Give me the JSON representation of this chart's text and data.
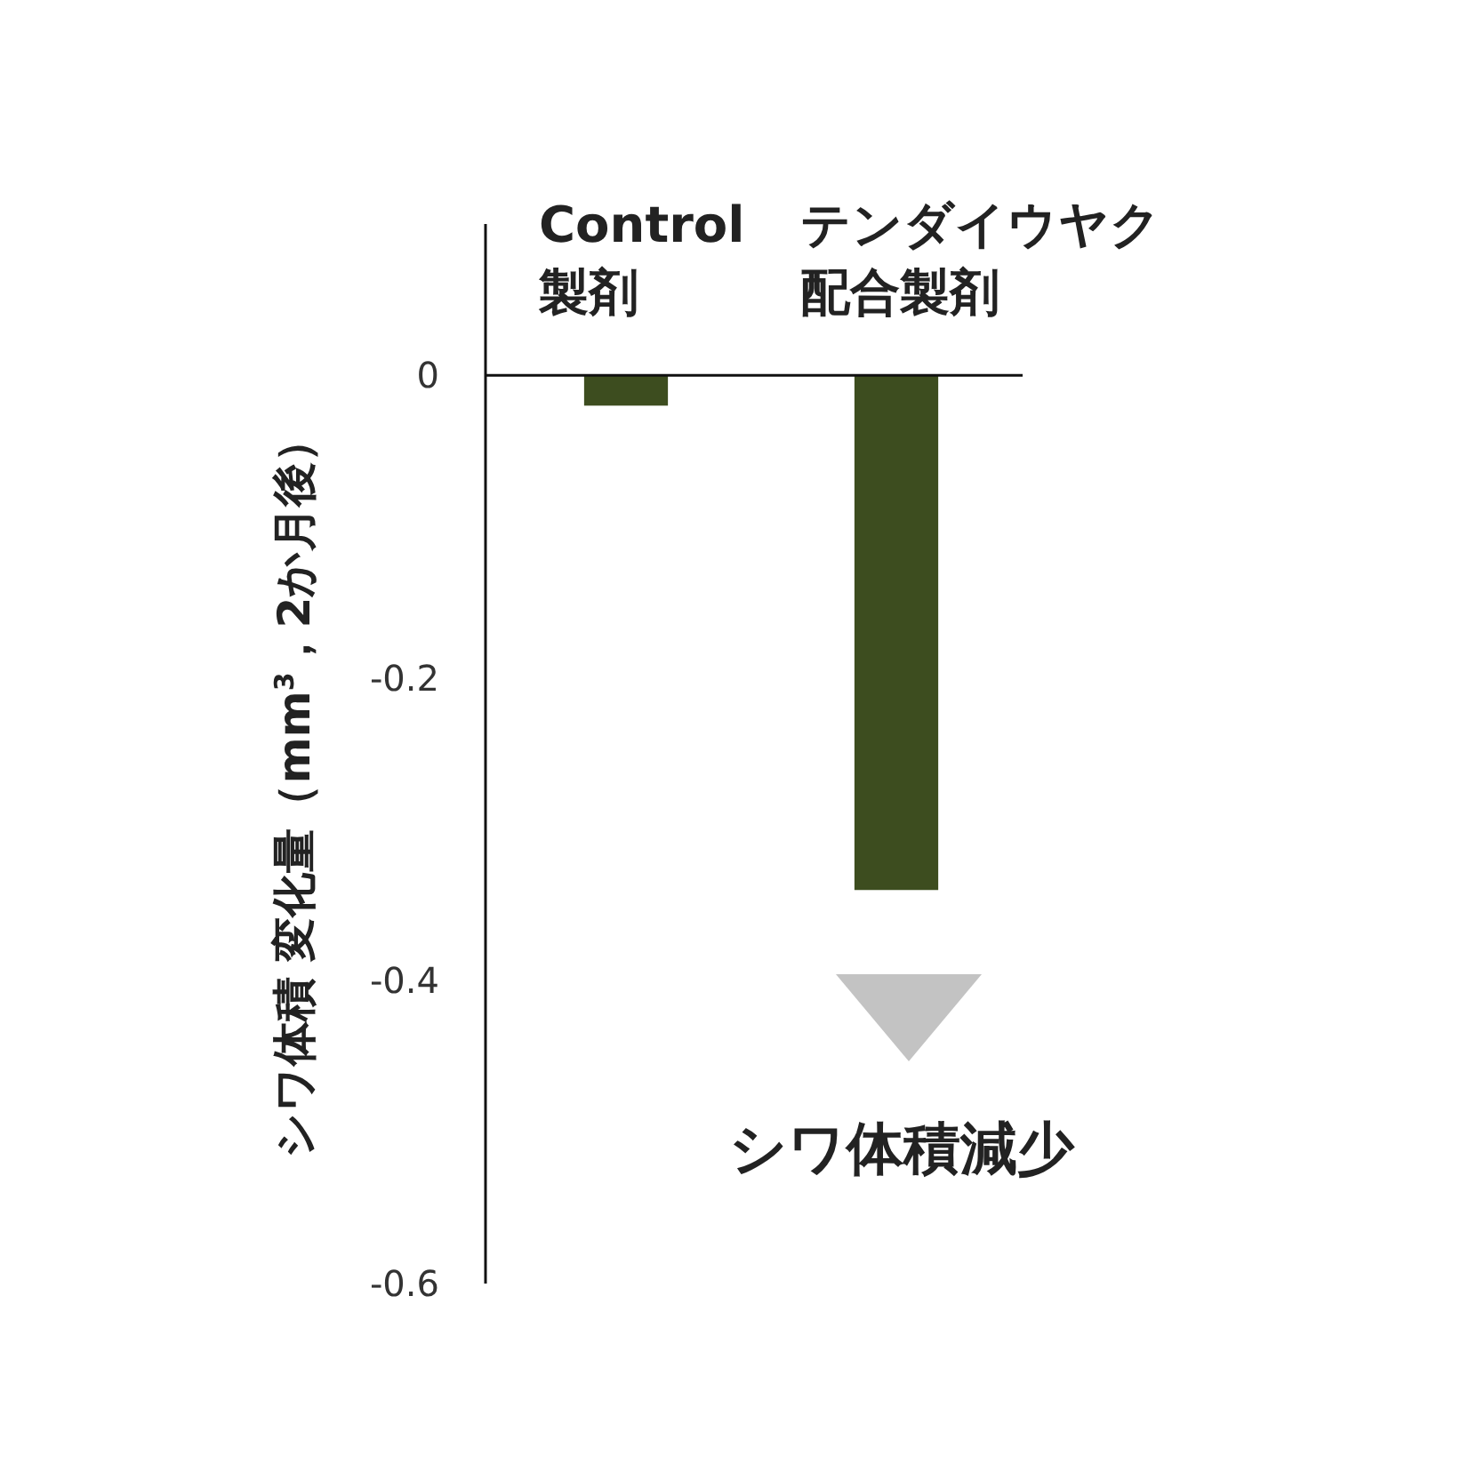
{
  "chart_data": {
    "type": "bar",
    "categories": [
      "Control製剤",
      "テンダイウヤク配合製剤"
    ],
    "values": [
      -0.02,
      -0.34
    ],
    "color": "#3d4d1f",
    "ylabel": "シワ体積 変化量（mm$^{3}$，2か月後）",
    "ylim": [
      -0.6,
      0.1
    ],
    "yticks": [
      0,
      -0.2,
      -0.4,
      -0.6
    ],
    "grid": false,
    "annotations": [
      "シワ体積減少"
    ]
  }
}
